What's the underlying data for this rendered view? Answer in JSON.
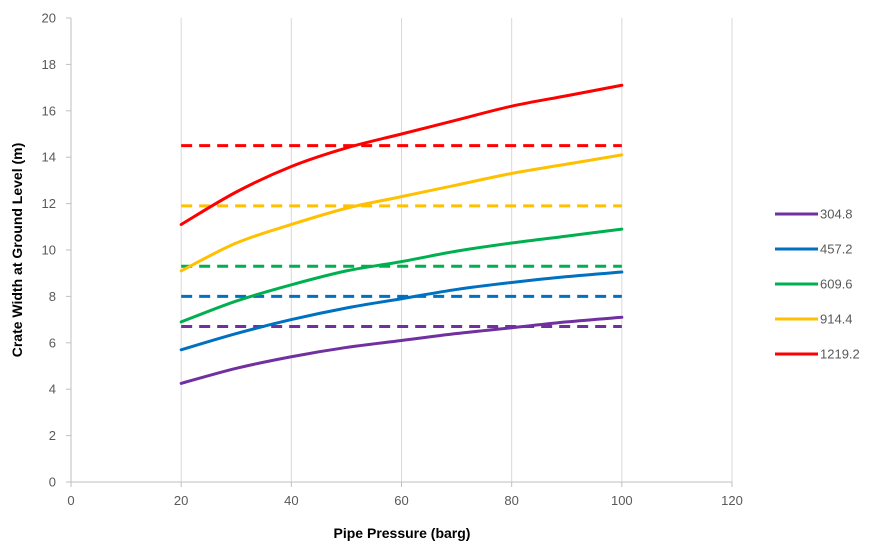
{
  "chart_data": {
    "type": "line",
    "xlabel": "Pipe Pressure (barg)",
    "ylabel": "Crate Width at Ground Level (m)",
    "xlim": [
      0,
      120
    ],
    "ylim": [
      0,
      20
    ],
    "x_ticks": [
      0,
      20,
      40,
      60,
      80,
      100,
      120
    ],
    "y_ticks": [
      0,
      2,
      4,
      6,
      8,
      10,
      12,
      14,
      16,
      18,
      20
    ],
    "grid": "vertical gridlines only",
    "legend_position": "right",
    "x": [
      20,
      30,
      40,
      50,
      60,
      70,
      80,
      90,
      100
    ],
    "series": [
      {
        "name": "304.8",
        "color": "#7030A0",
        "values": [
          4.25,
          4.9,
          5.4,
          5.8,
          6.1,
          6.4,
          6.65,
          6.9,
          7.1
        ],
        "reference": 6.7
      },
      {
        "name": "457.2",
        "color": "#0070C0",
        "values": [
          5.7,
          6.4,
          7.0,
          7.5,
          7.9,
          8.3,
          8.6,
          8.85,
          9.05
        ],
        "reference": 8.0
      },
      {
        "name": "609.6",
        "color": "#00B050",
        "values": [
          6.9,
          7.8,
          8.5,
          9.1,
          9.5,
          9.95,
          10.3,
          10.6,
          10.9
        ],
        "reference": 9.3
      },
      {
        "name": "914.4",
        "color": "#FFC000",
        "values": [
          9.1,
          10.3,
          11.1,
          11.8,
          12.3,
          12.8,
          13.3,
          13.7,
          14.1
        ],
        "reference": 11.9
      },
      {
        "name": "1219.2",
        "color": "#FF0000",
        "values": [
          11.1,
          12.5,
          13.6,
          14.4,
          15.0,
          15.6,
          16.2,
          16.65,
          17.1
        ],
        "reference": 14.5
      }
    ]
  }
}
